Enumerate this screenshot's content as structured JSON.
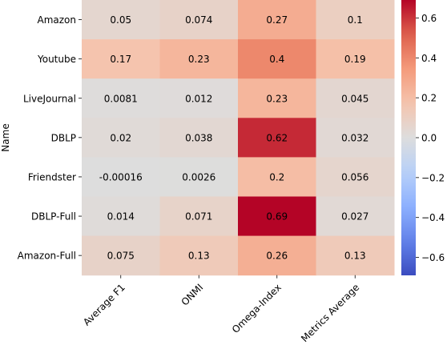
{
  "chart_data": {
    "type": "heatmap",
    "title": "",
    "xlabel": "",
    "ylabel": "Name",
    "columns": [
      "Average F1",
      "ONMI",
      "Omega-Index",
      "Metrics Average"
    ],
    "rows": [
      "Amazon",
      "Youtube",
      "LiveJournal",
      "DBLP",
      "Friendster",
      "DBLP-Full",
      "Amazon-Full"
    ],
    "values": [
      [
        0.05,
        0.074,
        0.27,
        0.1
      ],
      [
        0.17,
        0.23,
        0.4,
        0.19
      ],
      [
        0.0081,
        0.012,
        0.23,
        0.045
      ],
      [
        0.02,
        0.038,
        0.62,
        0.032
      ],
      [
        -0.00016,
        0.0026,
        0.2,
        0.056
      ],
      [
        0.014,
        0.071,
        0.69,
        0.027
      ],
      [
        0.075,
        0.13,
        0.26,
        0.13
      ]
    ],
    "cell_labels": [
      [
        "0.05",
        "0.074",
        "0.27",
        "0.1"
      ],
      [
        "0.17",
        "0.23",
        "0.4",
        "0.19"
      ],
      [
        "0.0081",
        "0.012",
        "0.23",
        "0.045"
      ],
      [
        "0.02",
        "0.038",
        "0.62",
        "0.032"
      ],
      [
        "-0.00016",
        "0.0026",
        "0.2",
        "0.056"
      ],
      [
        "0.014",
        "0.071",
        "0.69",
        "0.027"
      ],
      [
        "0.075",
        "0.13",
        "0.26",
        "0.13"
      ]
    ],
    "colorscale": "coolwarm",
    "vmin": -0.69,
    "vmax": 0.69,
    "colorbar_ticks": [
      0.6,
      0.4,
      0.2,
      0.0,
      -0.2,
      -0.4,
      -0.6
    ],
    "colorbar_tick_labels": [
      "0.6",
      "0.4",
      "0.2",
      "0.0",
      "−0.2",
      "−0.4",
      "−0.6"
    ],
    "grid": false,
    "legend": "colorbar-right"
  }
}
